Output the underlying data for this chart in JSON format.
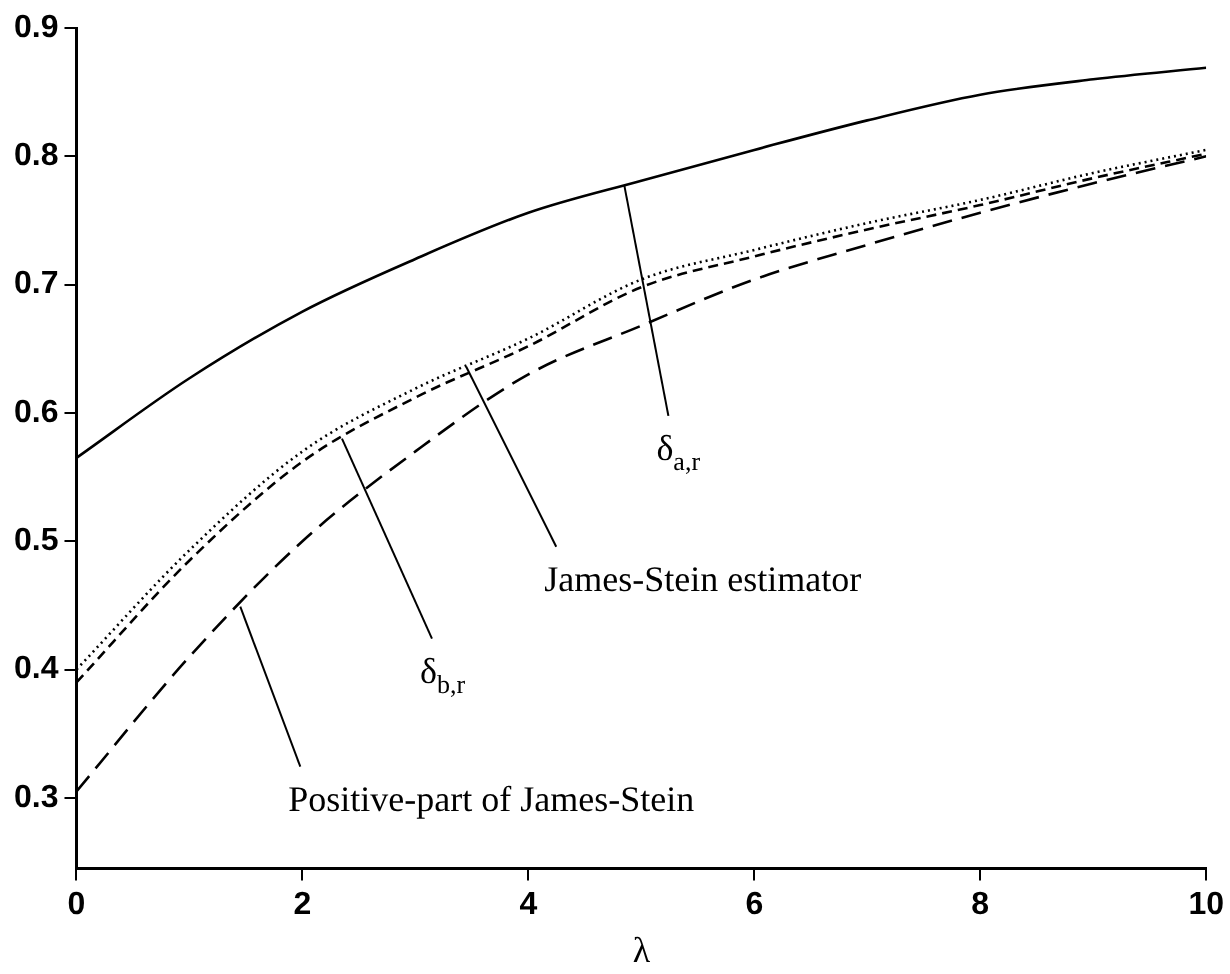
{
  "chart_data": {
    "type": "line",
    "xlabel": "λ",
    "x": [
      0,
      1,
      2,
      3,
      4,
      5,
      6,
      7,
      8,
      9,
      10
    ],
    "series": [
      {
        "color": "#000000",
        "line_style": "solid",
        "values": [
          0.565,
          0.627,
          0.679,
          0.72,
          0.756,
          0.781,
          0.805,
          0.828,
          0.848,
          0.86,
          0.869
        ]
      },
      {
        "color": "#000000",
        "line_style": "dotted",
        "values": [
          0.4,
          0.493,
          0.57,
          0.619,
          0.658,
          0.704,
          0.727,
          0.748,
          0.766,
          0.787,
          0.805
        ]
      },
      {
        "color": "#000000",
        "line_style": "dashed",
        "values": [
          0.39,
          0.485,
          0.562,
          0.612,
          0.652,
          0.698,
          0.722,
          0.743,
          0.762,
          0.783,
          0.802
        ]
      },
      {
        "color": "#000000",
        "line_style": "dashed",
        "values": [
          0.305,
          0.41,
          0.5,
          0.57,
          0.63,
          0.668,
          0.704,
          0.731,
          0.756,
          0.779,
          0.8
        ]
      }
    ],
    "annotations": [
      {
        "text": "δ$_{a,r}$",
        "x": 4.85,
        "y": 0.777
      },
      {
        "text": "James-Stein estimator",
        "x": 3.45,
        "y": 0.636
      },
      {
        "text": "δ$_{b,r}$",
        "x": 2.35,
        "y": 0.58
      },
      {
        "text": "Positive-part of James-Stein",
        "x": 1.45,
        "y": 0.449
      }
    ],
    "xlim": [
      0,
      10
    ],
    "xticks": [
      0,
      2,
      4,
      6,
      8,
      10
    ],
    "ylim": [
      0.245,
      0.9
    ],
    "yticks": [
      0.3,
      0.4,
      0.5,
      0.6,
      0.7,
      0.8,
      0.9
    ],
    "grid": false,
    "legend": false,
    "marker": "none"
  }
}
